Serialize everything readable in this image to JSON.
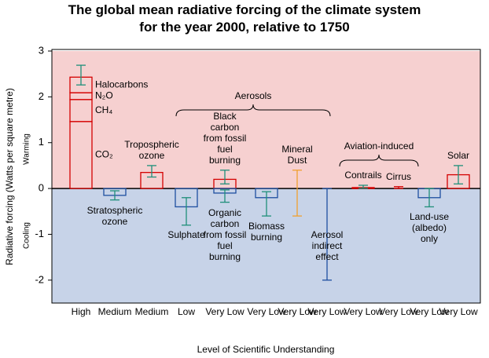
{
  "chart_data": {
    "type": "bar",
    "title": [
      "The global mean radiative forcing of the climate system",
      "for the year 2000, relative to 1750"
    ],
    "ylabel": "Radiative forcing  (Watts per square metre)",
    "xlabel": "Level  of Scientific Understanding",
    "zones": [
      {
        "label": "Warming",
        "color": "#f6d0d0"
      },
      {
        "label": "Cooling",
        "color": "#c7d3e8"
      }
    ],
    "annotations": [
      "Aerosols",
      "Aviation-induced"
    ],
    "ylim": [
      -2.5,
      3
    ],
    "yticks": [
      -2,
      -1,
      0,
      1,
      2,
      3
    ],
    "columns": [
      {
        "losu": "High",
        "bars": [
          {
            "stack": [
              {
                "name": "CO₂",
                "value": 1.46
              },
              {
                "name": "CH₄",
                "value": 0.48
              },
              {
                "name": "N₂O",
                "value": 0.15
              },
              {
                "name": "Halocarbons",
                "value": 0.34
              }
            ],
            "range": [
              2.26,
              2.69
            ],
            "color": "#d40000",
            "error_color": "#1f8f7a"
          }
        ]
      },
      {
        "losu": "Medium",
        "bars": [
          {
            "name": "Stratospheric ozone",
            "value": -0.15,
            "range": [
              -0.25,
              -0.05
            ],
            "color": "#1e4fa0",
            "error_color": "#1f8f7a"
          }
        ]
      },
      {
        "losu": "Medium",
        "bars": [
          {
            "name": "Tropospheric ozone",
            "value": 0.35,
            "range": [
              0.25,
              0.5
            ],
            "color": "#d40000",
            "error_color": "#1f8f7a"
          }
        ]
      },
      {
        "losu": "Low",
        "bars": [
          {
            "name": "Sulphate",
            "value": -0.4,
            "range": [
              -0.8,
              -0.2
            ],
            "color": "#1e4fa0",
            "error_color": "#1f8f7a"
          }
        ]
      },
      {
        "losu": "Very Low",
        "bars": [
          {
            "name": "Black carbon from fossil fuel burning",
            "value": 0.2,
            "range": [
              0.1,
              0.4
            ],
            "color": "#d40000",
            "error_color": "#1f8f7a"
          },
          {
            "name": "Organic carbon from fossil fuel burning",
            "value": -0.1,
            "range": [
              -0.3,
              -0.03
            ],
            "color": "#1e4fa0",
            "error_color": "#1f8f7a"
          }
        ]
      },
      {
        "losu": "Very Low",
        "bars": [
          {
            "name": "Biomass burning",
            "value": -0.2,
            "range": [
              -0.6,
              -0.07
            ],
            "color": "#1e4fa0",
            "error_color": "#1f8f7a"
          }
        ]
      },
      {
        "losu": "Very Low",
        "bars": [
          {
            "name": "Mineral Dust",
            "range": [
              -0.6,
              0.4
            ],
            "error_color": "#f0a030"
          }
        ]
      },
      {
        "losu": "Very Low",
        "bars": [
          {
            "name": "Aerosol indirect effect",
            "range": [
              -2,
              0
            ],
            "error_color": "#1e4fa0"
          }
        ]
      },
      {
        "losu": "Very Low",
        "bars": [
          {
            "name": "Contrails",
            "value": 0.02,
            "range": [
              0.005,
              0.07
            ],
            "color": "#d40000",
            "error_color": "#1f8f7a"
          }
        ]
      },
      {
        "losu": "Very Low",
        "bars": [
          {
            "name": "Cirrus",
            "range": [
              0,
              0.04
            ],
            "error_color": "#d40000"
          }
        ]
      },
      {
        "losu": "Very Low",
        "bars": [
          {
            "name": "Land-use (albedo) only",
            "value": -0.2,
            "range": [
              -0.4,
              0
            ],
            "color": "#1e4fa0",
            "error_color": "#1f8f7a"
          }
        ]
      },
      {
        "losu": "Very Low",
        "bars": [
          {
            "name": "Solar",
            "value": 0.3,
            "range": [
              0.1,
              0.5
            ],
            "color": "#d40000",
            "error_color": "#1f8f7a"
          }
        ]
      }
    ]
  }
}
